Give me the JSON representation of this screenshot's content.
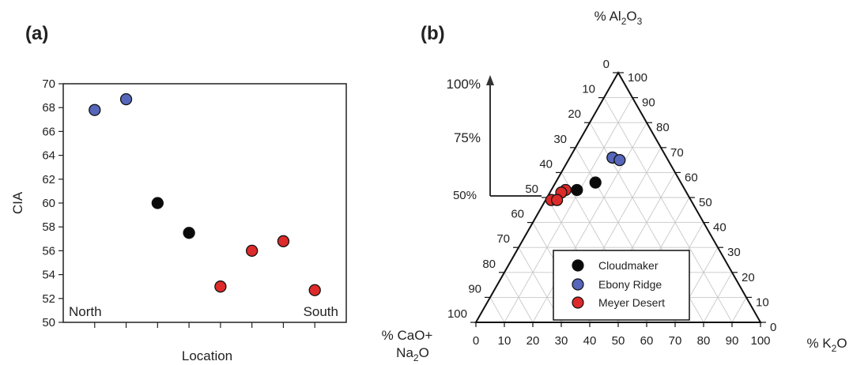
{
  "chart_data": [
    {
      "panel": "(a)",
      "type": "scatter",
      "xlabel": "Location",
      "ylabel": "CIA",
      "ylim": [
        50,
        70
      ],
      "yticks": [
        50,
        52,
        54,
        56,
        58,
        60,
        62,
        64,
        66,
        68,
        70
      ],
      "x_categories": 8,
      "annotations": [
        "North",
        "South"
      ],
      "colors": {
        "Cloudmaker": "#0a0a0a",
        "Ebony Ridge": "#5566bb",
        "Meyer Desert": "#dd2a2a"
      },
      "points": [
        {
          "x": 1,
          "y": 67.8,
          "group": "Ebony Ridge"
        },
        {
          "x": 2,
          "y": 68.7,
          "group": "Ebony Ridge"
        },
        {
          "x": 3,
          "y": 60.0,
          "group": "Cloudmaker"
        },
        {
          "x": 4,
          "y": 57.5,
          "group": "Cloudmaker"
        },
        {
          "x": 5,
          "y": 53.0,
          "group": "Meyer Desert"
        },
        {
          "x": 6,
          "y": 56.0,
          "group": "Meyer Desert"
        },
        {
          "x": 7,
          "y": 56.8,
          "group": "Meyer Desert"
        },
        {
          "x": 8,
          "y": 52.7,
          "group": "Meyer Desert"
        }
      ]
    },
    {
      "panel": "(b)",
      "type": "ternary",
      "apex_label": {
        "pre": "% Al",
        "sub1": "2",
        "mid": "O",
        "sub2": "3"
      },
      "left_label": {
        "line1": "% CaO+",
        "line2_pre": "Na",
        "line2_sub": "2",
        "line2_post": "O"
      },
      "right_label": {
        "pre": "% K",
        "sub": "2",
        "post": "O"
      },
      "ticks": [
        0,
        10,
        20,
        30,
        40,
        50,
        60,
        70,
        80,
        90,
        100
      ],
      "cia_scale": [
        "100%",
        "75%",
        "50%"
      ],
      "legend": [
        "Cloudmaker",
        "Ebony Ridge",
        "Meyer Desert"
      ],
      "colors": {
        "Cloudmaker": "#0a0a0a",
        "Ebony Ridge": "#5566bb",
        "Meyer Desert": "#dd2a2a"
      },
      "points": [
        {
          "al": 66,
          "k": 15,
          "group": "Ebony Ridge"
        },
        {
          "al": 65,
          "k": 18,
          "group": "Ebony Ridge"
        },
        {
          "al": 56,
          "k": 14,
          "group": "Cloudmaker"
        },
        {
          "al": 53,
          "k": 9,
          "group": "Cloudmaker"
        },
        {
          "al": 53,
          "k": 5,
          "group": "Meyer Desert"
        },
        {
          "al": 52,
          "k": 4,
          "group": "Meyer Desert"
        },
        {
          "al": 49,
          "k": 2,
          "group": "Meyer Desert"
        },
        {
          "al": 49,
          "k": 4,
          "group": "Meyer Desert"
        }
      ]
    }
  ]
}
